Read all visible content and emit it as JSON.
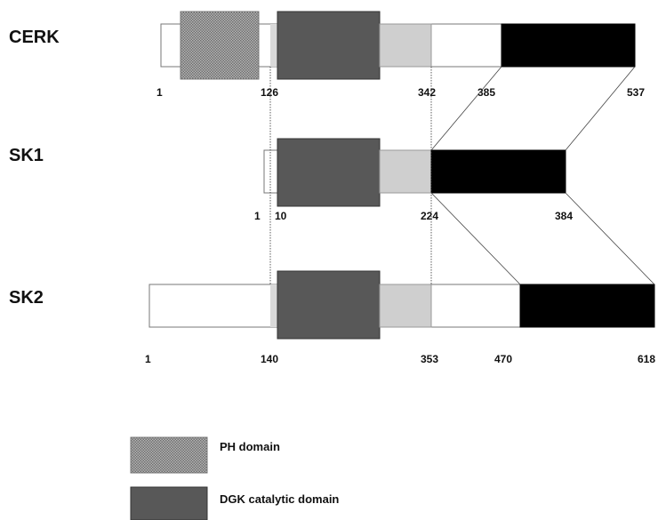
{
  "colors": {
    "ph_domain": "#9a9a9a",
    "dgk_domain": "#585858",
    "light_region": "#cfcfcf",
    "c_terminal": "#000000",
    "backbone": "#ffffff",
    "outline": "#777777"
  },
  "proteins": [
    {
      "name": "CERK",
      "ticks": [
        "1",
        "126",
        "342",
        "385",
        "537"
      ]
    },
    {
      "name": "SK1",
      "ticks": [
        "1",
        "10",
        "224",
        "384"
      ]
    },
    {
      "name": "SK2",
      "ticks": [
        "1",
        "140",
        "353",
        "470",
        "618"
      ]
    }
  ],
  "legend": [
    {
      "label": "PH domain",
      "pattern": "ph"
    },
    {
      "label": "DGK catalytic domain",
      "pattern": "dgk"
    }
  ]
}
